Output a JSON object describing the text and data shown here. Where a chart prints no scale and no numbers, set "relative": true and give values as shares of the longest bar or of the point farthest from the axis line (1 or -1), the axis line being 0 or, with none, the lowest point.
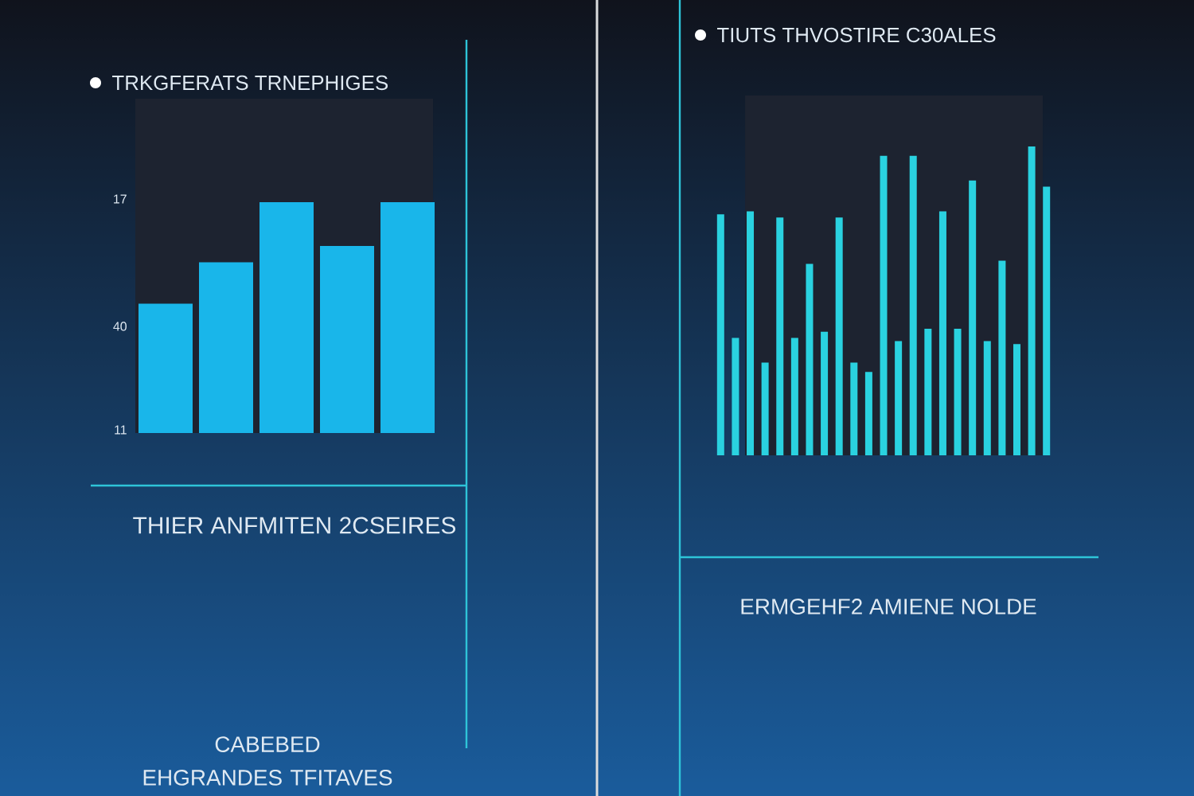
{
  "chart_data": [
    {
      "type": "bar",
      "title": "TRKGFERATS TRNEPHIGES",
      "relative": true,
      "color": "#19b6ea",
      "categories": [
        null,
        null,
        null,
        null,
        null
      ],
      "values": [
        0.56,
        0.74,
        1,
        0.81,
        1
      ],
      "annotations": [
        "17",
        "40",
        "11",
        "THIER ANFMITEN 2CSEIRES",
        "CABEBED EHGRANDES TFITAVES"
      ]
    },
    {
      "type": "bar",
      "title": "TIUTS THVOSTIRE C30ALES",
      "relative": true,
      "color": "#2ad2e0",
      "categories": [
        null,
        null,
        null,
        null,
        null,
        null,
        null,
        null,
        null,
        null,
        null,
        null,
        null,
        null,
        null,
        null,
        null,
        null,
        null,
        null,
        null,
        null,
        null
      ],
      "values": [
        0.78,
        0.38,
        0.79,
        0.3,
        0.77,
        0.38,
        0.62,
        0.4,
        0.77,
        0.3,
        0.27,
        0.97,
        0.37,
        0.97,
        0.41,
        0.79,
        0.41,
        0.89,
        0.37,
        0.63,
        0.36,
        1,
        0.87
      ],
      "annotations": [
        "ERMGEHF2 AMIENE NOLDE"
      ]
    }
  ]
}
